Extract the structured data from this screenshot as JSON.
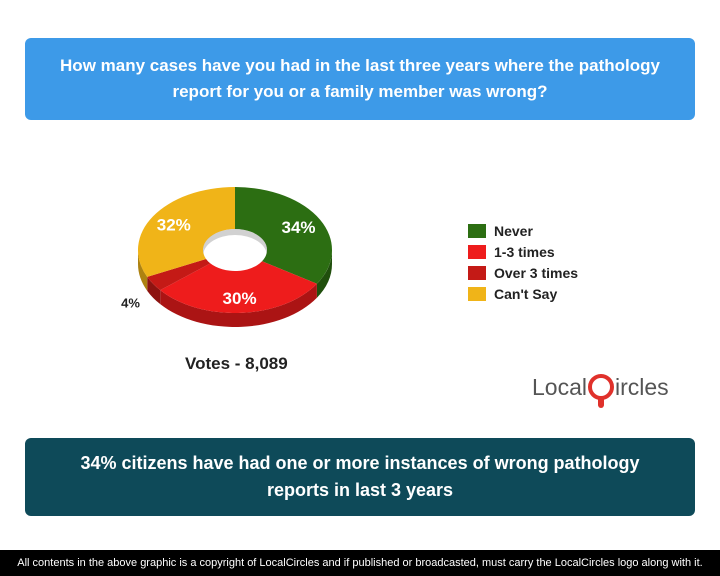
{
  "question": "How many cases have you had in the last three years where the pathology report for you or a family member was wrong?",
  "chart_data": {
    "type": "pie",
    "categories": [
      "Never",
      "1-3 times",
      "Over 3 times",
      "Can't Say"
    ],
    "values": [
      34,
      30,
      4,
      32
    ],
    "labels": [
      "34%",
      "30%",
      "4%",
      "32%"
    ],
    "colors": [
      "#2c6e12",
      "#ee1c1c",
      "#c41a16",
      "#f0b418"
    ],
    "legend_position": "right"
  },
  "votes": "Votes - 8,089",
  "logo": {
    "text_before": "Local",
    "text_after": "ircles"
  },
  "conclusion": "34% citizens have had one or more instances of wrong pathology reports in last 3 years",
  "footer": "All contents in the above graphic is a copyright of LocalCircles and if published or broadcasted, must carry the LocalCircles logo along with it."
}
